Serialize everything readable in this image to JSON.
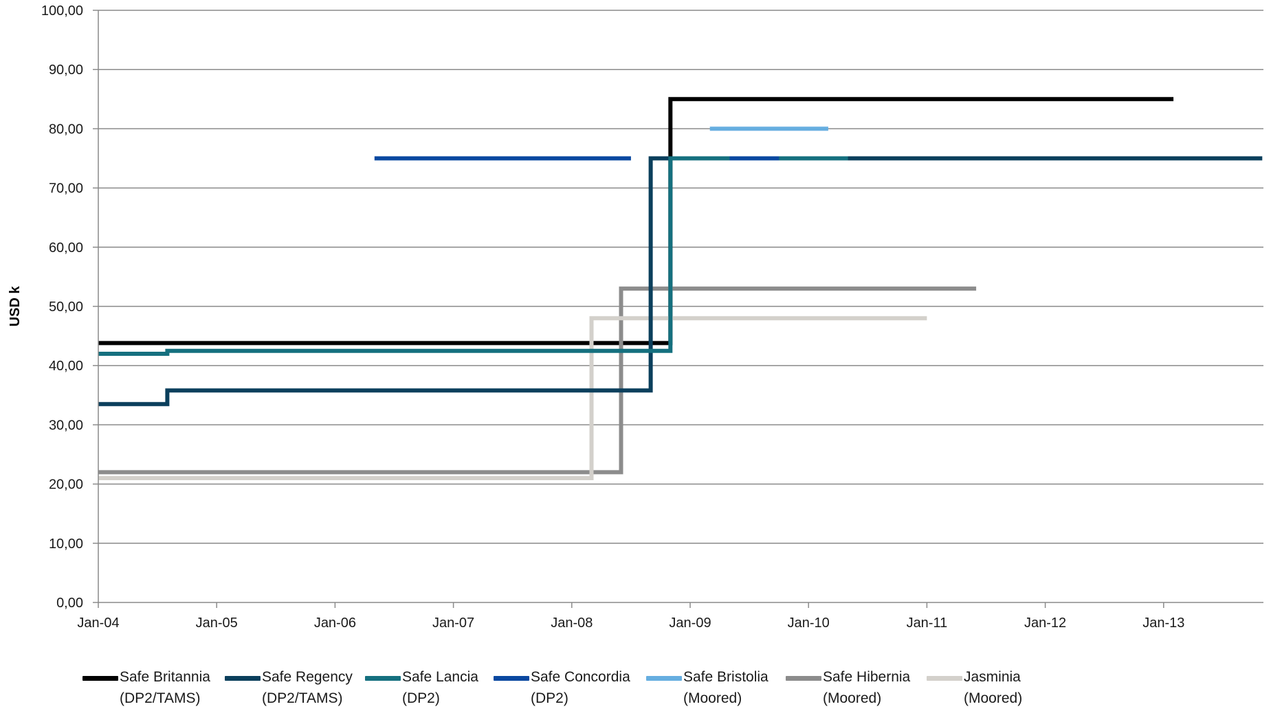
{
  "chart_data": {
    "type": "line",
    "step": true,
    "title": "",
    "xlabel": "",
    "ylabel": "USD k",
    "ylim": [
      0,
      100
    ],
    "yticks": [
      "0,00",
      "10,00",
      "20,00",
      "30,00",
      "40,00",
      "50,00",
      "60,00",
      "70,00",
      "80,00",
      "90,00",
      "100,00"
    ],
    "xlim": [
      "2004-01",
      "2013-12"
    ],
    "xticks": [
      "Jan-04",
      "Jan-05",
      "Jan-06",
      "Jan-07",
      "Jan-08",
      "Jan-09",
      "Jan-10",
      "Jan-11",
      "Jan-12",
      "Jan-13"
    ],
    "grid": "horizontal",
    "legend_position": "bottom",
    "series": [
      {
        "name": "Safe Britannia\n(DP2/TAMS)",
        "color": "#000000",
        "points": [
          [
            "2004-01",
            43.8
          ],
          [
            "2008-11",
            43.8
          ],
          [
            "2008-11",
            85
          ],
          [
            "2013-02",
            85
          ]
        ]
      },
      {
        "name": "Safe Hibernia\n(Moored)",
        "color": "#8c8c8c",
        "points": [
          [
            "2004-01",
            22
          ],
          [
            "2008-06",
            22
          ],
          [
            "2008-06",
            53
          ],
          [
            "2011-06",
            53
          ]
        ]
      },
      {
        "name": "Jasminia\n(Moored)",
        "color": "#d3d0cb",
        "points": [
          [
            "2004-01",
            21
          ],
          [
            "2008-03",
            21
          ],
          [
            "2008-03",
            48
          ],
          [
            "2011-01",
            48
          ]
        ]
      },
      {
        "name": "Safe Regency\n(DP2/TAMS)",
        "color": "#0b3f5c",
        "points": [
          [
            "2004-01",
            33.5
          ],
          [
            "2004-08",
            33.5
          ],
          [
            "2004-08",
            35.8
          ],
          [
            "2008-09",
            35.8
          ],
          [
            "2008-09",
            75
          ],
          [
            "2013-11",
            75
          ]
        ]
      },
      {
        "name": "Safe Lancia\n(DP2)",
        "color": "#15707f",
        "points": [
          [
            "2004-01",
            42
          ],
          [
            "2004-08",
            42
          ],
          [
            "2004-08",
            42.5
          ],
          [
            "2008-11",
            42.5
          ],
          [
            "2008-11",
            75
          ],
          [
            "2010-05",
            75
          ]
        ]
      },
      {
        "name": "Safe Concordia\n(DP2)",
        "color": "#0a48a0",
        "segments": [
          [
            [
              "2006-05",
              75
            ],
            [
              "2008-07",
              75
            ]
          ],
          [
            [
              "2009-05",
              75
            ],
            [
              "2009-10",
              75
            ]
          ]
        ]
      },
      {
        "name": "Safe Bristolia\n(Moored)",
        "color": "#66aee0",
        "points": [
          [
            "2009-03",
            80
          ],
          [
            "2010-03",
            80
          ]
        ]
      }
    ],
    "legend_order": [
      "Safe Britannia\n(DP2/TAMS)",
      "Safe Regency\n(DP2/TAMS)",
      "Safe Lancia\n(DP2)",
      "Safe Concordia\n(DP2)",
      "Safe Bristolia\n(Moored)",
      "Safe Hibernia\n(Moored)",
      "Jasminia\n(Moored)"
    ]
  }
}
